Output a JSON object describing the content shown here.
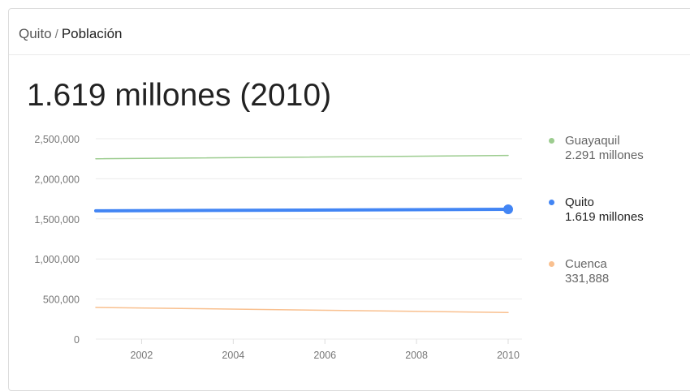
{
  "breadcrumb": {
    "place": "Quito",
    "separator": "/",
    "topic": "Población"
  },
  "headline": "1.619 millones (2010)",
  "colors": {
    "guayaquil": "#9ccc8f",
    "quito": "#4285f4",
    "cuenca": "#f9c08f",
    "grid": "#ebebeb",
    "axis_text": "#777777"
  },
  "legend": [
    {
      "name": "Guayaquil",
      "value": "2.291 millones",
      "color": "#9ccc8f",
      "emphasis": false
    },
    {
      "name": "Quito",
      "value": "1.619 millones",
      "color": "#4285f4",
      "emphasis": true
    },
    {
      "name": "Cuenca",
      "value": "331,888",
      "color": "#f9c08f",
      "emphasis": false
    }
  ],
  "chart_data": {
    "type": "line",
    "title": "",
    "xlabel": "",
    "ylabel": "",
    "x_range": [
      2001,
      2010
    ],
    "x_ticks": [
      2002,
      2004,
      2006,
      2008,
      2010
    ],
    "ylim": [
      0,
      2500000
    ],
    "y_ticks": [
      0,
      500000,
      1000000,
      1500000,
      2000000,
      2500000
    ],
    "y_tick_labels": [
      "0",
      "500,000",
      "1,000,000",
      "1,500,000",
      "2,000,000",
      "2,500,000"
    ],
    "grid": true,
    "legend_position": "right",
    "series": [
      {
        "name": "Guayaquil",
        "x": [
          2001,
          2010
        ],
        "y": [
          2250000,
          2291000
        ],
        "color": "#9ccc8f",
        "width": 1.5
      },
      {
        "name": "Quito",
        "x": [
          2001,
          2010
        ],
        "y": [
          1600000,
          1619000
        ],
        "color": "#4285f4",
        "width": 4,
        "endpoint_marker": true
      },
      {
        "name": "Cuenca",
        "x": [
          2001,
          2010
        ],
        "y": [
          395000,
          331888
        ],
        "color": "#f9c08f",
        "width": 1.5
      }
    ]
  }
}
